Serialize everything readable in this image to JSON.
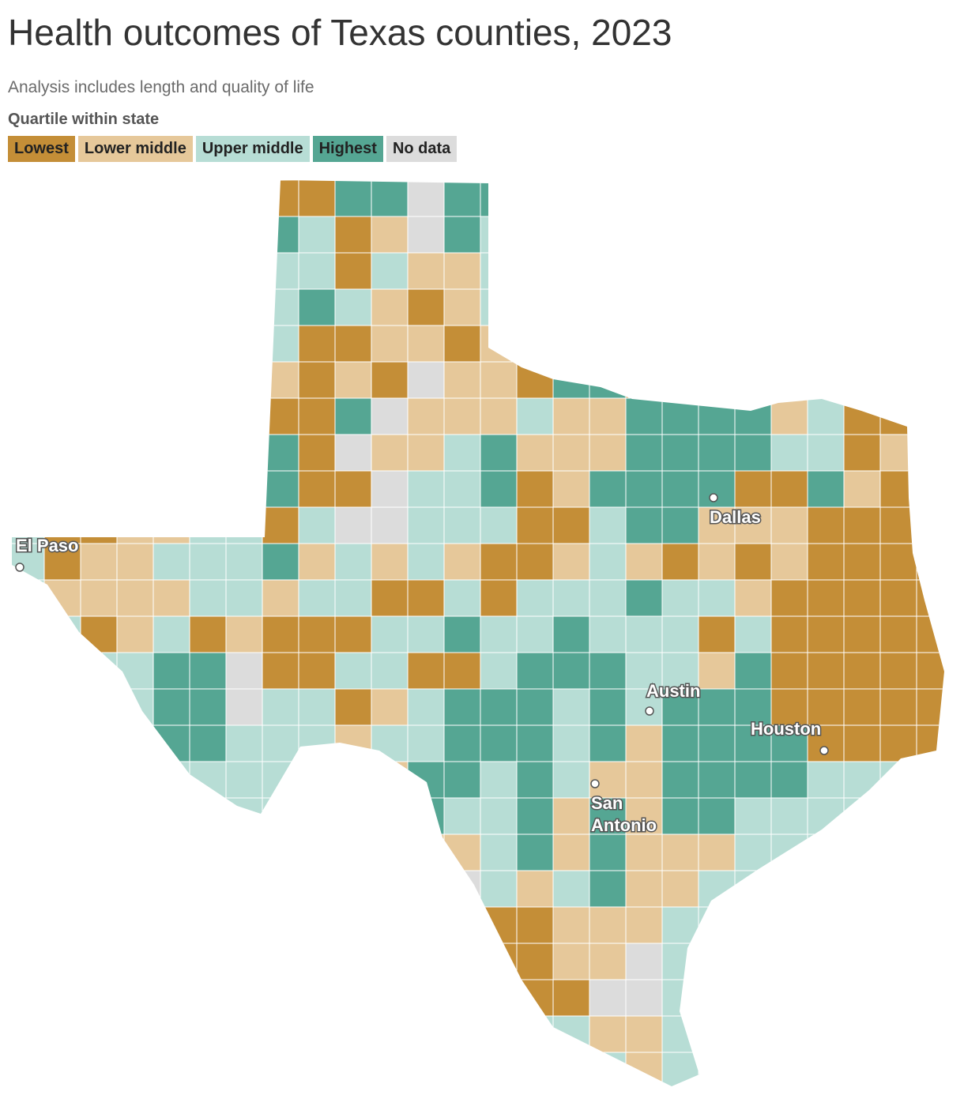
{
  "header": {
    "title": "Health outcomes of Texas counties, 2023",
    "subtitle": "Analysis includes length and quality of life"
  },
  "legend": {
    "title": "Quartile within state",
    "items": [
      {
        "label": "Lowest",
        "color": "#c48e37"
      },
      {
        "label": "Lower middle",
        "color": "#e6c89a"
      },
      {
        "label": "Upper middle",
        "color": "#b7ddd5"
      },
      {
        "label": "Highest",
        "color": "#55a693"
      },
      {
        "label": "No data",
        "color": "#dcdcdc"
      }
    ]
  },
  "cities": [
    {
      "label": "El Paso"
    },
    {
      "label": "Dallas"
    },
    {
      "label": "Austin"
    },
    {
      "label": "Houston"
    },
    {
      "label": "San Antonio"
    }
  ]
}
